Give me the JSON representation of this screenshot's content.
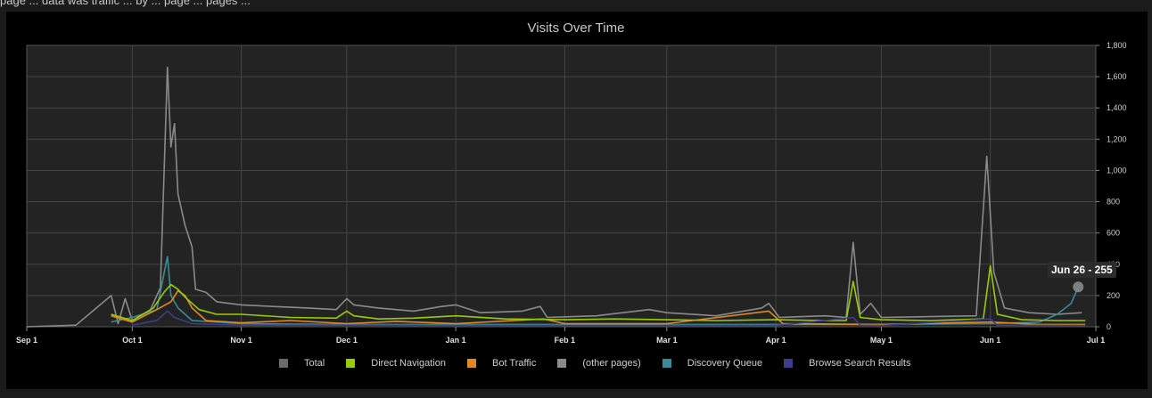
{
  "header_text": "page ... data was traffic ... by ... page ... pages ... ",
  "chart_data": {
    "type": "line",
    "title": "Visits Over Time",
    "x_range": [
      "2023-09-01",
      "2024-07-01"
    ],
    "x_ticks": [
      "Sep 1",
      "Oct 1",
      "Nov 1",
      "Dec 1",
      "Jan 1",
      "Feb 1",
      "Mar 1",
      "Apr 1",
      "May 1",
      "Jun 1",
      "Jul 1"
    ],
    "ylim": [
      0,
      1800
    ],
    "y_ticks": [
      "0",
      "200",
      "400",
      "600",
      "800",
      "1,000",
      "1,200",
      "1,400",
      "1,600",
      "1,800"
    ],
    "y_axis_side": "right",
    "grid": true,
    "legend_position": "bottom",
    "series": [
      {
        "name": "Total",
        "color": "#6a6a6a",
        "points": []
      },
      {
        "name": "Direct Navigation",
        "color": "#99cc00",
        "points": [
          [
            "2023-09-25",
            80
          ],
          [
            "2023-10-01",
            40
          ],
          [
            "2023-10-07",
            120
          ],
          [
            "2023-10-10",
            220
          ],
          [
            "2023-10-12",
            270
          ],
          [
            "2023-10-14",
            240
          ],
          [
            "2023-10-16",
            190
          ],
          [
            "2023-10-18",
            150
          ],
          [
            "2023-10-20",
            110
          ],
          [
            "2023-10-25",
            80
          ],
          [
            "2023-11-01",
            80
          ],
          [
            "2023-11-15",
            60
          ],
          [
            "2023-11-28",
            55
          ],
          [
            "2023-12-01",
            100
          ],
          [
            "2023-12-03",
            70
          ],
          [
            "2023-12-10",
            50
          ],
          [
            "2023-12-20",
            55
          ],
          [
            "2024-01-01",
            70
          ],
          [
            "2024-01-15",
            50
          ],
          [
            "2024-02-01",
            45
          ],
          [
            "2024-02-15",
            50
          ],
          [
            "2024-03-01",
            45
          ],
          [
            "2024-03-15",
            40
          ],
          [
            "2024-04-01",
            45
          ],
          [
            "2024-04-15",
            40
          ],
          [
            "2024-04-21",
            40
          ],
          [
            "2024-04-23",
            290
          ],
          [
            "2024-04-25",
            60
          ],
          [
            "2024-05-01",
            45
          ],
          [
            "2024-05-15",
            40
          ],
          [
            "2024-05-30",
            50
          ],
          [
            "2024-06-01",
            390
          ],
          [
            "2024-06-03",
            80
          ],
          [
            "2024-06-10",
            45
          ],
          [
            "2024-06-20",
            40
          ],
          [
            "2024-06-28",
            40
          ]
        ]
      },
      {
        "name": "Bot Traffic",
        "color": "#e08a1e",
        "points": [
          [
            "2023-09-25",
            70
          ],
          [
            "2023-10-01",
            30
          ],
          [
            "2023-10-08",
            110
          ],
          [
            "2023-10-12",
            160
          ],
          [
            "2023-10-14",
            230
          ],
          [
            "2023-10-16",
            200
          ],
          [
            "2023-10-18",
            120
          ],
          [
            "2023-10-22",
            40
          ],
          [
            "2023-11-01",
            25
          ],
          [
            "2023-11-15",
            40
          ],
          [
            "2023-12-01",
            20
          ],
          [
            "2023-12-15",
            35
          ],
          [
            "2024-01-01",
            20
          ],
          [
            "2024-01-26",
            50
          ],
          [
            "2024-02-01",
            20
          ],
          [
            "2024-03-01",
            20
          ],
          [
            "2024-03-30",
            100
          ],
          [
            "2024-04-03",
            20
          ],
          [
            "2024-05-01",
            15
          ],
          [
            "2024-06-01",
            30
          ],
          [
            "2024-06-15",
            15
          ],
          [
            "2024-06-28",
            15
          ]
        ]
      },
      {
        "name": "(other pages)",
        "color": "#8a8a8a",
        "points": [
          [
            "2023-09-01",
            0
          ],
          [
            "2023-09-15",
            10
          ],
          [
            "2023-09-25",
            200
          ],
          [
            "2023-09-27",
            20
          ],
          [
            "2023-09-29",
            180
          ],
          [
            "2023-10-01",
            40
          ],
          [
            "2023-10-06",
            100
          ],
          [
            "2023-10-09",
            250
          ],
          [
            "2023-10-11",
            1660
          ],
          [
            "2023-10-12",
            1150
          ],
          [
            "2023-10-13",
            1300
          ],
          [
            "2023-10-14",
            850
          ],
          [
            "2023-10-16",
            650
          ],
          [
            "2023-10-18",
            510
          ],
          [
            "2023-10-19",
            240
          ],
          [
            "2023-10-22",
            220
          ],
          [
            "2023-10-25",
            160
          ],
          [
            "2023-11-01",
            140
          ],
          [
            "2023-11-10",
            130
          ],
          [
            "2023-11-20",
            120
          ],
          [
            "2023-11-28",
            110
          ],
          [
            "2023-12-01",
            180
          ],
          [
            "2023-12-03",
            140
          ],
          [
            "2023-12-10",
            120
          ],
          [
            "2023-12-20",
            100
          ],
          [
            "2023-12-28",
            130
          ],
          [
            "2024-01-01",
            140
          ],
          [
            "2024-01-08",
            90
          ],
          [
            "2024-01-20",
            100
          ],
          [
            "2024-01-25",
            130
          ],
          [
            "2024-01-27",
            60
          ],
          [
            "2024-02-10",
            70
          ],
          [
            "2024-02-25",
            110
          ],
          [
            "2024-03-01",
            90
          ],
          [
            "2024-03-15",
            70
          ],
          [
            "2024-03-28",
            120
          ],
          [
            "2024-03-30",
            150
          ],
          [
            "2024-04-02",
            60
          ],
          [
            "2024-04-15",
            70
          ],
          [
            "2024-04-21",
            60
          ],
          [
            "2024-04-23",
            540
          ],
          [
            "2024-04-25",
            80
          ],
          [
            "2024-04-28",
            150
          ],
          [
            "2024-05-01",
            60
          ],
          [
            "2024-05-15",
            65
          ],
          [
            "2024-05-28",
            70
          ],
          [
            "2024-05-31",
            1090
          ],
          [
            "2024-06-02",
            350
          ],
          [
            "2024-06-05",
            120
          ],
          [
            "2024-06-12",
            90
          ],
          [
            "2024-06-20",
            80
          ],
          [
            "2024-06-27",
            90
          ]
        ]
      },
      {
        "name": "Discovery Queue",
        "color": "#3a8b99",
        "points": [
          [
            "2023-09-25",
            30
          ],
          [
            "2023-10-01",
            60
          ],
          [
            "2023-10-08",
            110
          ],
          [
            "2023-10-11",
            450
          ],
          [
            "2023-10-12",
            200
          ],
          [
            "2023-10-14",
            120
          ],
          [
            "2023-10-18",
            40
          ],
          [
            "2023-11-01",
            20
          ],
          [
            "2023-12-01",
            15
          ],
          [
            "2024-01-01",
            15
          ],
          [
            "2024-02-01",
            15
          ],
          [
            "2024-03-01",
            15
          ],
          [
            "2024-04-01",
            15
          ],
          [
            "2024-05-01",
            15
          ],
          [
            "2024-06-01",
            20
          ],
          [
            "2024-06-15",
            30
          ],
          [
            "2024-06-20",
            80
          ],
          [
            "2024-06-24",
            150
          ],
          [
            "2024-06-26",
            255
          ]
        ]
      },
      {
        "name": "Browse Search Results",
        "color": "#3d3d8a",
        "points": [
          [
            "2023-10-01",
            10
          ],
          [
            "2023-10-08",
            40
          ],
          [
            "2023-10-11",
            100
          ],
          [
            "2023-10-13",
            60
          ],
          [
            "2023-10-18",
            20
          ],
          [
            "2023-11-01",
            10
          ],
          [
            "2023-12-01",
            10
          ],
          [
            "2024-01-01",
            8
          ],
          [
            "2024-02-01",
            8
          ],
          [
            "2024-03-01",
            8
          ],
          [
            "2024-04-01",
            8
          ],
          [
            "2024-04-23",
            60
          ],
          [
            "2024-04-25",
            10
          ],
          [
            "2024-05-01",
            8
          ],
          [
            "2024-06-01",
            50
          ],
          [
            "2024-06-03",
            10
          ],
          [
            "2024-06-28",
            8
          ]
        ]
      }
    ],
    "tooltip": {
      "label": "Jun 26 - 255",
      "date": "2024-06-26",
      "value": 255
    }
  }
}
